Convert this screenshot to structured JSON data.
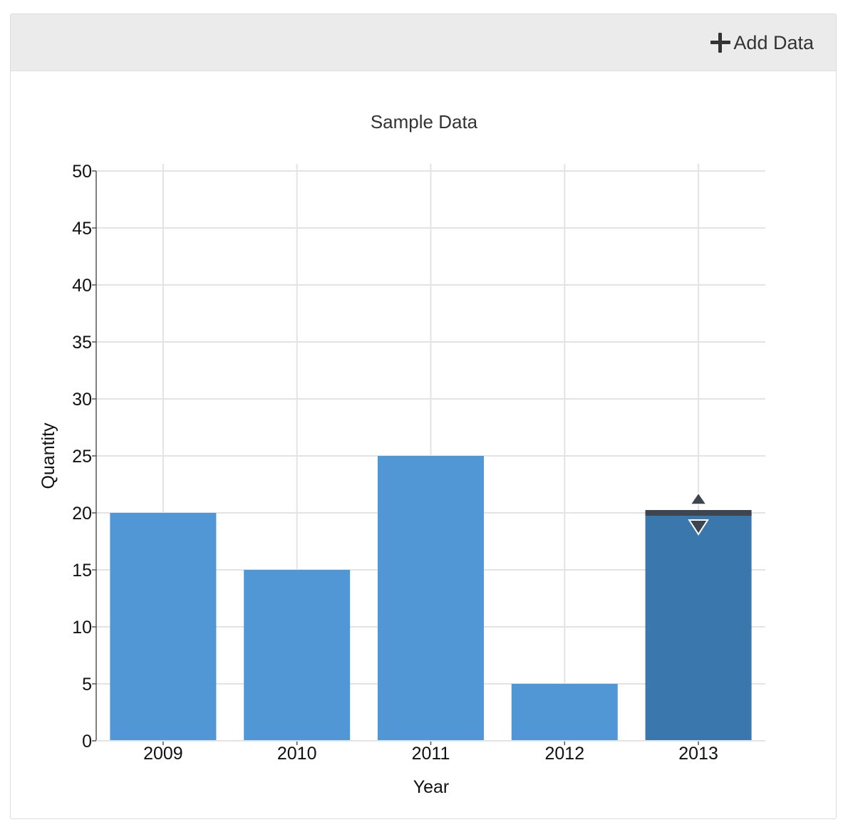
{
  "header": {
    "add_data_label": "Add Data",
    "add_icon": "plus-icon"
  },
  "chart_data": {
    "type": "bar",
    "title": "Sample Data",
    "xlabel": "Year",
    "ylabel": "Quantity",
    "categories": [
      "2009",
      "2010",
      "2011",
      "2012",
      "2013"
    ],
    "values": [
      20,
      15,
      25,
      5,
      20
    ],
    "ylim": [
      0,
      50
    ],
    "yticks": [
      0,
      5,
      10,
      15,
      20,
      25,
      30,
      35,
      40,
      45,
      50
    ],
    "grid": true,
    "selected_category": "2013",
    "colors": {
      "bar": "#5297d5",
      "bar_selected": "#3a77ad",
      "handle": "#3d4550",
      "grid": "#e3e3e3",
      "axis": "#555555",
      "text": "#111111",
      "title": "#333333"
    }
  }
}
